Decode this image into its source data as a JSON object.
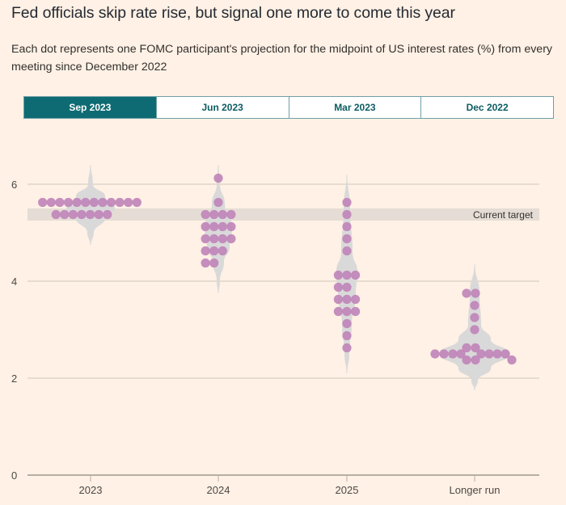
{
  "header": {
    "title": "Fed officials skip rate rise, but signal one more to come this year",
    "subtitle": "Each dot represents one FOMC participant's projection for the midpoint of US interest rates (%) from every meeting since December 2022"
  },
  "tabs": [
    {
      "label": "Sep 2023",
      "active": true
    },
    {
      "label": "Jun 2023",
      "active": false
    },
    {
      "label": "Mar 2023",
      "active": false
    },
    {
      "label": "Dec 2022",
      "active": false
    }
  ],
  "colors": {
    "accent": "#0f6b73",
    "dot": "#c085ba",
    "violin": "#d9d9d9",
    "band": "#e5ddd5",
    "grid": "#cec6b9"
  },
  "chart_data": {
    "type": "scatter",
    "subtype": "dot-plot with violin",
    "title": "Fed officials skip rate rise, but signal one more to come this year",
    "ylabel": "Midpoint of US interest rates (%)",
    "ylim": [
      0,
      6.5
    ],
    "yticks": [
      0,
      2,
      4,
      6
    ],
    "grid": true,
    "categories": [
      "2023",
      "2024",
      "2025",
      "Longer run"
    ],
    "current_target": {
      "label": "Current target",
      "range": [
        5.25,
        5.5
      ]
    },
    "series": [
      {
        "name": "2023",
        "dots": [
          {
            "value": 5.625,
            "count": 12
          },
          {
            "value": 5.375,
            "count": 7
          }
        ]
      },
      {
        "name": "2024",
        "dots": [
          {
            "value": 6.125,
            "count": 1
          },
          {
            "value": 5.625,
            "count": 1
          },
          {
            "value": 5.375,
            "count": 4
          },
          {
            "value": 5.125,
            "count": 4
          },
          {
            "value": 4.875,
            "count": 4
          },
          {
            "value": 4.625,
            "count": 3
          },
          {
            "value": 4.375,
            "count": 2
          }
        ]
      },
      {
        "name": "2025",
        "dots": [
          {
            "value": 5.625,
            "count": 1
          },
          {
            "value": 5.375,
            "count": 1
          },
          {
            "value": 5.125,
            "count": 1
          },
          {
            "value": 4.875,
            "count": 1
          },
          {
            "value": 4.625,
            "count": 1
          },
          {
            "value": 4.125,
            "count": 3
          },
          {
            "value": 3.875,
            "count": 2
          },
          {
            "value": 3.625,
            "count": 3
          },
          {
            "value": 3.375,
            "count": 3
          },
          {
            "value": 3.125,
            "count": 1
          },
          {
            "value": 2.875,
            "count": 1
          },
          {
            "value": 2.625,
            "count": 1
          }
        ]
      },
      {
        "name": "Longer run",
        "dots": [
          {
            "value": 3.75,
            "count": 2
          },
          {
            "value": 3.5,
            "count": 1
          },
          {
            "value": 3.25,
            "count": 1
          },
          {
            "value": 3.0,
            "count": 1
          },
          {
            "value": 2.625,
            "count": 2
          },
          {
            "value": 2.5,
            "count": 8
          },
          {
            "value": 2.375,
            "count": 3
          }
        ]
      }
    ]
  }
}
